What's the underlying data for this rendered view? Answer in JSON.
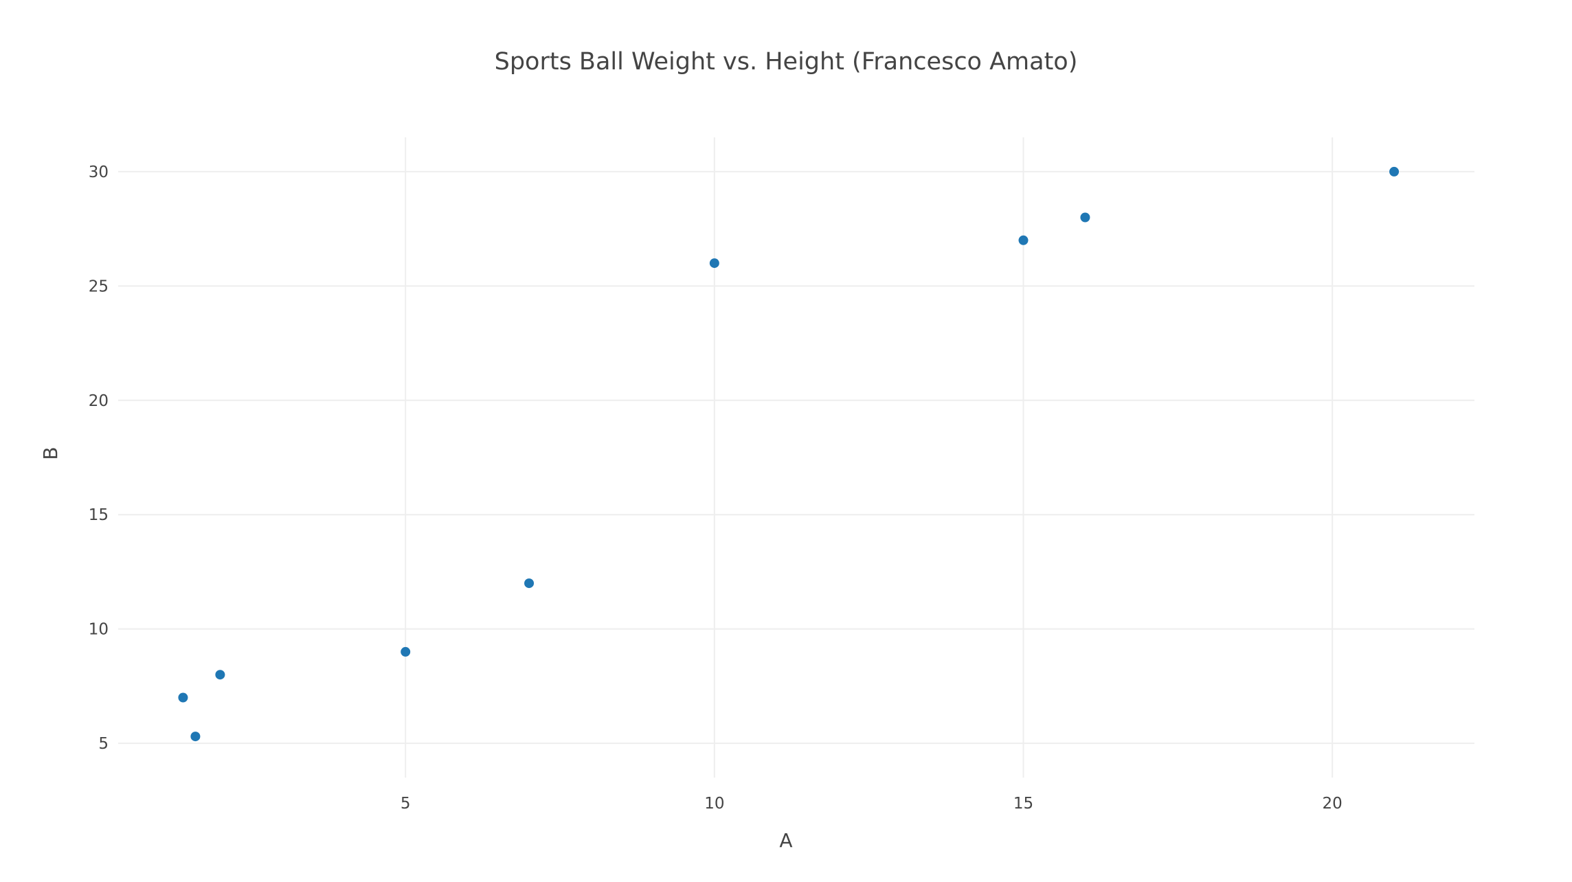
{
  "chart_data": {
    "type": "scatter",
    "title": "Sports Ball Weight vs. Height (Francesco Amato)",
    "xlabel": "A",
    "ylabel": "B",
    "xlim": [
      0.35,
      22.3
    ],
    "ylim": [
      3.5,
      31.5
    ],
    "xticks": [
      5,
      10,
      15,
      20
    ],
    "yticks": [
      5,
      10,
      15,
      20,
      25,
      30
    ],
    "grid": true,
    "legend": "none",
    "marker_color": "#1f77b4",
    "gridline_color": "#eeeeee",
    "text_color": "#444444",
    "background_color": "#ffffff",
    "series": [
      {
        "x": [
          1.4,
          1.6,
          2,
          5,
          7,
          10,
          15,
          16,
          21
        ],
        "y": [
          7,
          5.3,
          8,
          9,
          12,
          26,
          27,
          28,
          30
        ]
      }
    ]
  }
}
